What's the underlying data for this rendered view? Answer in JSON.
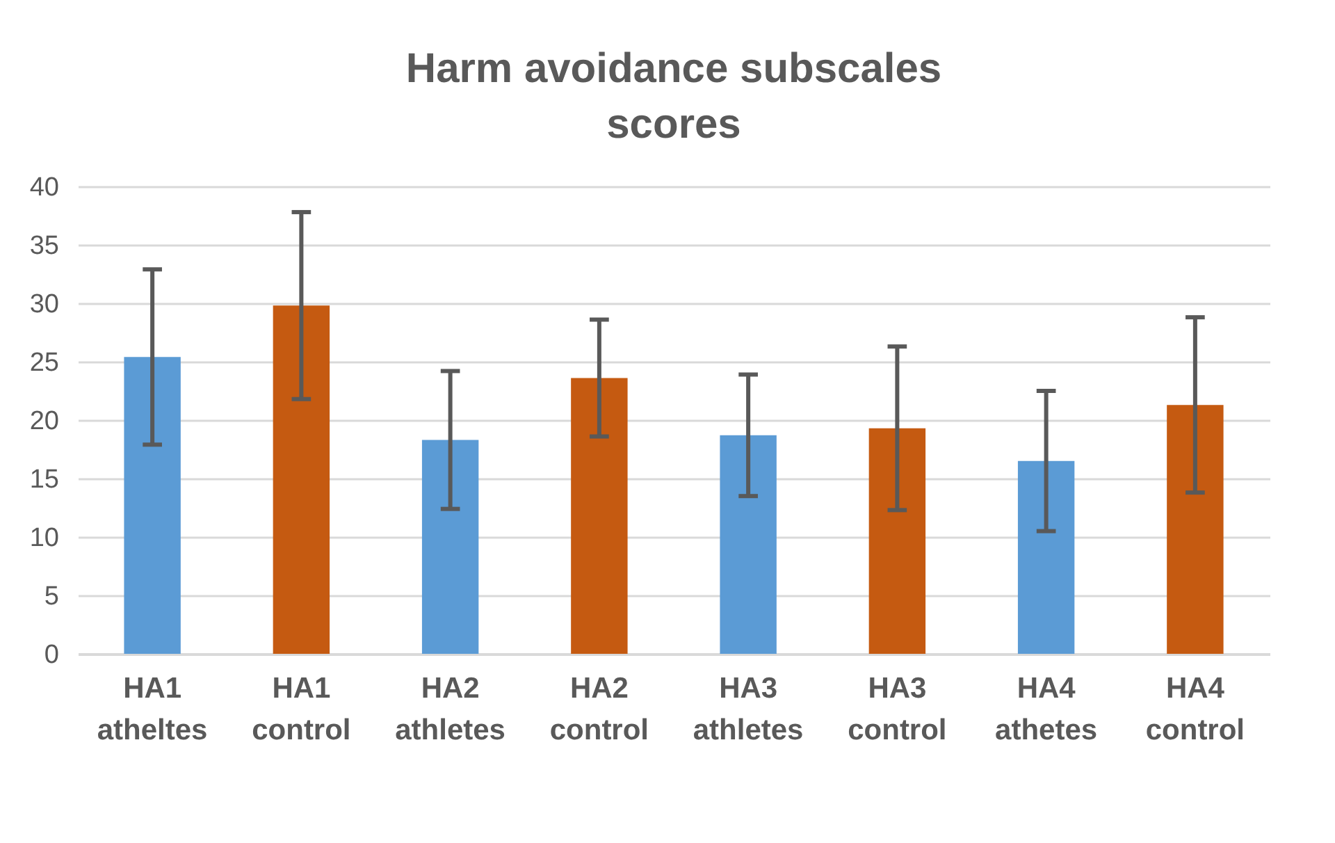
{
  "chart_data": {
    "type": "bar",
    "title": "Harm avoidance subscales\nscores",
    "categories": [
      "HA1 atheltes",
      "HA1 control",
      "HA2 athletes",
      "HA2 control",
      "HA3 athletes",
      "HA3 control",
      "HA4 athetes",
      "HA4 control"
    ],
    "values": [
      25.4,
      29.8,
      18.3,
      23.6,
      18.7,
      19.3,
      16.5,
      21.3
    ],
    "errors": [
      7.5,
      8.0,
      5.9,
      5.0,
      5.2,
      7.0,
      6.0,
      7.5
    ],
    "colors": [
      "#5b9bd5",
      "#c55a11",
      "#5b9bd5",
      "#c55a11",
      "#5b9bd5",
      "#c55a11",
      "#5b9bd5",
      "#c55a11"
    ],
    "ylim": [
      0,
      40
    ],
    "yticks": [
      0,
      5,
      10,
      15,
      20,
      25,
      30,
      35,
      40
    ],
    "grid": "y",
    "legend": false
  }
}
